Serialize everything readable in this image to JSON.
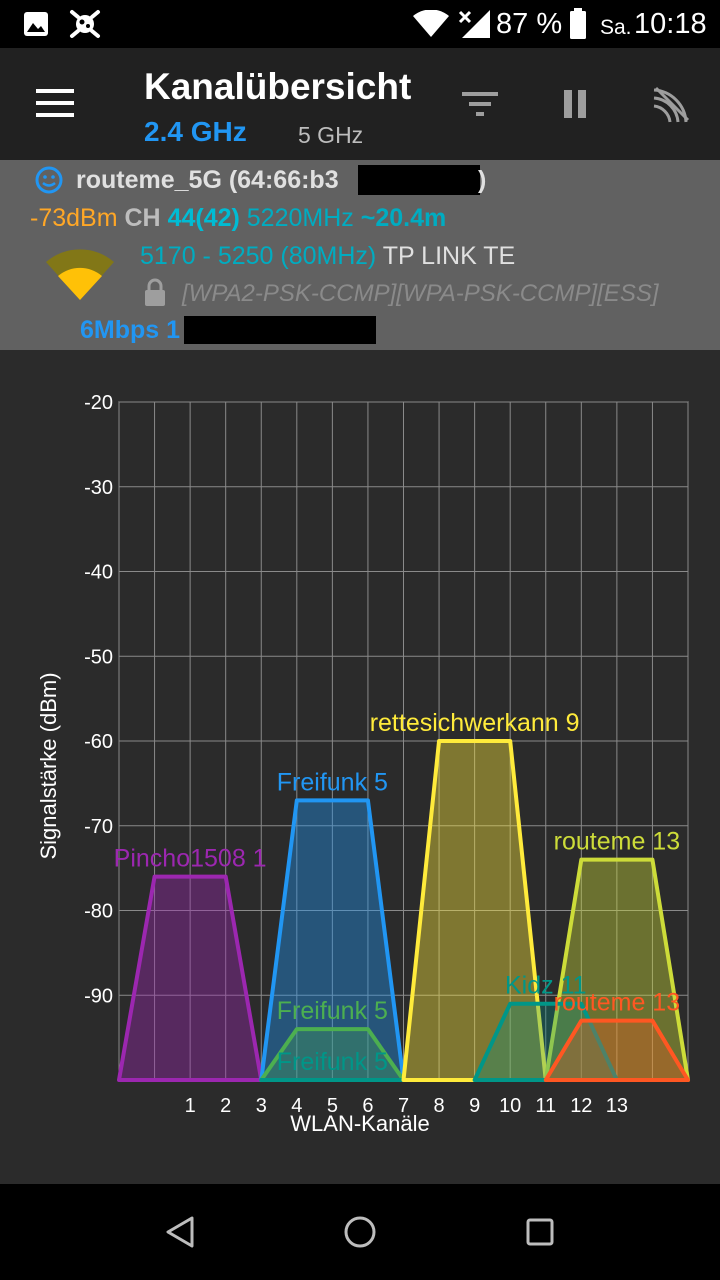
{
  "status_bar": {
    "battery": "87 %",
    "day": "Sa.",
    "time": "10:18",
    "icons": [
      "image-icon",
      "virus-icon",
      "wifi-icon",
      "cell-signal-icon",
      "battery-icon"
    ]
  },
  "app_bar": {
    "title": "Kanalübersicht",
    "band_active": "2.4 GHz",
    "band_inactive": "5 GHz",
    "icons": [
      "menu-icon",
      "filter-icon",
      "pause-icon",
      "wifi-scan-icon"
    ]
  },
  "network": {
    "ssid": "routeme_5G (64:66:b3",
    "ssid_end": ")",
    "signal": "-73dBm",
    "ch_label": "CH",
    "channel": "44(42)",
    "frequency": "5220MHz",
    "distance": "~20.4m",
    "range": "5170 - 5250 (80MHz)",
    "vendor": "TP LINK TE",
    "security": "[WPA2-PSK-CCMP][WPA-PSK-CCMP][ESS]",
    "speed": "6Mbps 1"
  },
  "chart_data": {
    "type": "area",
    "xlabel": "WLAN-Kanäle",
    "ylabel": "Signalstärke (dBm)",
    "ylim": [
      -100,
      -20
    ],
    "xlim": [
      -1,
      15
    ],
    "x_ticks": [
      "1",
      "2",
      "3",
      "4",
      "5",
      "6",
      "7",
      "8",
      "9",
      "10",
      "11",
      "12",
      "13"
    ],
    "y_ticks": [
      "-20",
      "-30",
      "-40",
      "-50",
      "-60",
      "-70",
      "-80",
      "-90"
    ],
    "grid": true,
    "series": [
      {
        "name": "Pincho1508 1",
        "channel": 1,
        "width": 4,
        "dbm": -76,
        "color": "#9c27b0",
        "opacity": 0.4
      },
      {
        "name": "Freifunk 5",
        "channel": 5,
        "width": 4,
        "dbm": -67,
        "color": "#2196f3",
        "opacity": 0.4
      },
      {
        "name": "Freifunk 5",
        "channel": 5,
        "width": 4,
        "dbm": -94,
        "color": "#4caf50",
        "opacity": 0.3
      },
      {
        "name": "Freifunk 5",
        "channel": 5,
        "width": 4,
        "dbm": -100,
        "color": "#009688",
        "opacity": 0.3
      },
      {
        "name": "rettesichwerkann 9",
        "channel": 9,
        "width": 4,
        "dbm": -60,
        "color": "#ffeb3b",
        "opacity": 0.4
      },
      {
        "name": "routeme 13",
        "channel": 13,
        "width": 4,
        "dbm": -74,
        "color": "#cddc39",
        "opacity": 0.4
      },
      {
        "name": "Kidz 11",
        "channel": 11,
        "width": 4,
        "dbm": -91,
        "color": "#009688",
        "opacity": 0.3
      },
      {
        "name": "routeme 13",
        "channel": 13,
        "width": 4,
        "dbm": -93,
        "color": "#ff5722",
        "opacity": 0.3
      }
    ]
  }
}
